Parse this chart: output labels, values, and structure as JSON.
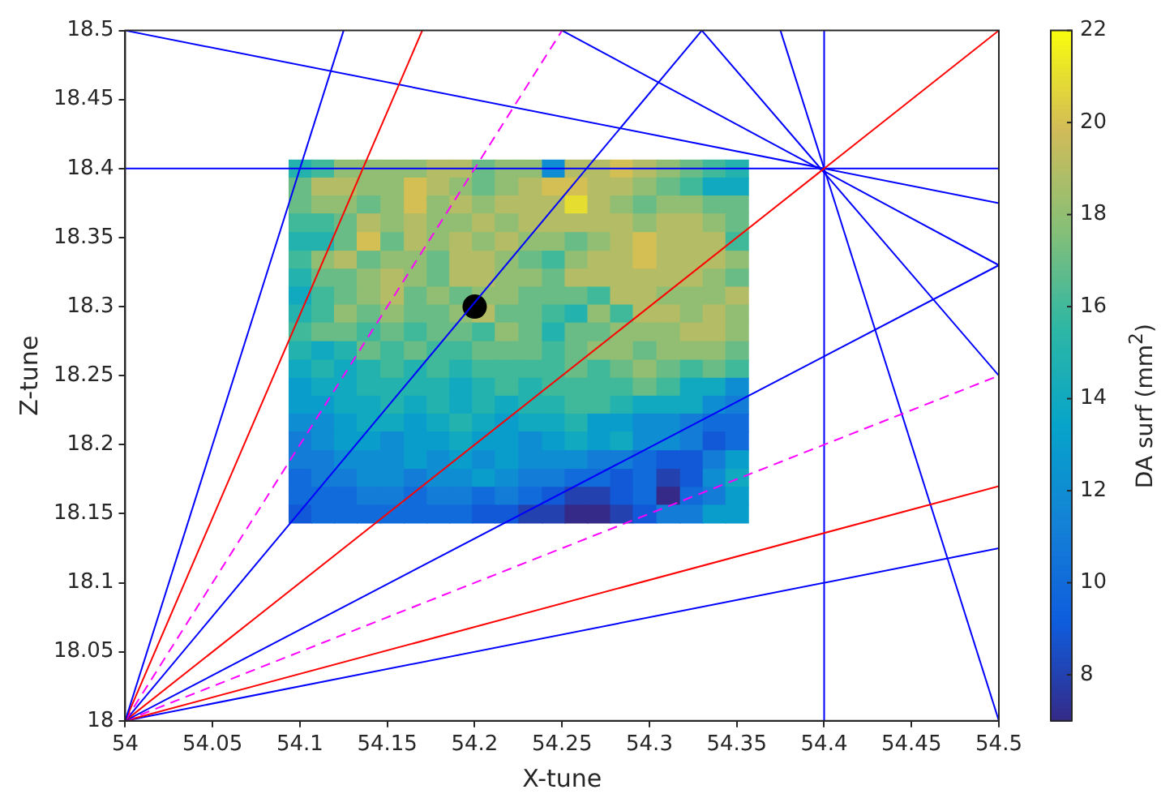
{
  "chart_data": {
    "type": "heatmap",
    "xlabel": "X-tune",
    "ylabel": "Z-tune",
    "clabel": "DA surf (mm$^{2}$)",
    "x": [
      54.1,
      54.113,
      54.126,
      54.139,
      54.153,
      54.166,
      54.179,
      54.192,
      54.205,
      54.218,
      54.232,
      54.245,
      54.258,
      54.271,
      54.284,
      54.297,
      54.311,
      54.324,
      54.337,
      54.35
    ],
    "y": [
      18.4,
      18.387,
      18.374,
      18.361,
      18.347,
      18.334,
      18.321,
      18.308,
      18.295,
      18.282,
      18.268,
      18.255,
      18.242,
      18.229,
      18.216,
      18.203,
      18.189,
      18.176,
      18.163,
      18.15
    ],
    "cells": [
      [
        15,
        16,
        18,
        18,
        18,
        18,
        19,
        19,
        17,
        18,
        18,
        12,
        19,
        19,
        20,
        19,
        18,
        17,
        16,
        15
      ],
      [
        17,
        19,
        19,
        18,
        18,
        20,
        19,
        18,
        17,
        18,
        19,
        20,
        20,
        19,
        19,
        18,
        17,
        16,
        14,
        14
      ],
      [
        17,
        18,
        18,
        17,
        18,
        20,
        18,
        19,
        18,
        19,
        19,
        19,
        21,
        19,
        18,
        17,
        18,
        18,
        17,
        17
      ],
      [
        16,
        16,
        17,
        19,
        18,
        19,
        18,
        18,
        19,
        18,
        19,
        19,
        19,
        19,
        19,
        18,
        19,
        19,
        18,
        17
      ],
      [
        15,
        15,
        17,
        20,
        17,
        19,
        18,
        19,
        18,
        19,
        18,
        18,
        17,
        18,
        19,
        20,
        19,
        19,
        19,
        16
      ],
      [
        16,
        18,
        19,
        17,
        18,
        18,
        17,
        19,
        19,
        18,
        17,
        16,
        18,
        19,
        19,
        20,
        19,
        19,
        19,
        18
      ],
      [
        15,
        17,
        17,
        18,
        19,
        18,
        17,
        19,
        19,
        18,
        18,
        17,
        19,
        19,
        19,
        19,
        19,
        19,
        18,
        17
      ],
      [
        14,
        16,
        17,
        18,
        19,
        17,
        18,
        17,
        18,
        18,
        17,
        17,
        17,
        16,
        19,
        19,
        18,
        18,
        18,
        19
      ],
      [
        15,
        16,
        18,
        17,
        18,
        17,
        17,
        18,
        19,
        17,
        17,
        16,
        15,
        18,
        16,
        19,
        19,
        18,
        19,
        18
      ],
      [
        16,
        17,
        17,
        16,
        17,
        16,
        17,
        17,
        16,
        18,
        17,
        15,
        17,
        17,
        18,
        18,
        18,
        19,
        19,
        18
      ],
      [
        15,
        14,
        15,
        17,
        16,
        17,
        16,
        16,
        17,
        17,
        17,
        16,
        17,
        18,
        18,
        17,
        18,
        18,
        18,
        17
      ],
      [
        14,
        15,
        14,
        15,
        16,
        15,
        16,
        15,
        16,
        16,
        16,
        16,
        17,
        16,
        17,
        18,
        17,
        16,
        17,
        16
      ],
      [
        13,
        14,
        14,
        15,
        15,
        15,
        15,
        14,
        15,
        16,
        15,
        16,
        16,
        16,
        16,
        17,
        16,
        14,
        14,
        12
      ],
      [
        13,
        13,
        14,
        14,
        15,
        14,
        15,
        14,
        15,
        14,
        15,
        15,
        16,
        16,
        15,
        14,
        14,
        14,
        12,
        11
      ],
      [
        12,
        12,
        13,
        14,
        14,
        13,
        14,
        15,
        14,
        13,
        14,
        14,
        15,
        13,
        13,
        12,
        12,
        11,
        10,
        10
      ],
      [
        11,
        12,
        13,
        13,
        12,
        13,
        13,
        14,
        13,
        13,
        12,
        13,
        14,
        13,
        14,
        12,
        12,
        11,
        9,
        10
      ],
      [
        11,
        11,
        12,
        12,
        12,
        13,
        12,
        13,
        12,
        13,
        12,
        12,
        12,
        11,
        11,
        10,
        9,
        9,
        11,
        13
      ],
      [
        10,
        11,
        11,
        12,
        12,
        11,
        12,
        12,
        13,
        12,
        11,
        11,
        10,
        10,
        9,
        10,
        8,
        9,
        12,
        14
      ],
      [
        10,
        10,
        10,
        11,
        11,
        10,
        11,
        11,
        10,
        11,
        10,
        9,
        8,
        8,
        9,
        10,
        7,
        10,
        11,
        13
      ],
      [
        9,
        10,
        10,
        10,
        10,
        10,
        10,
        10,
        9,
        9,
        8,
        8,
        7,
        7,
        8,
        9,
        11,
        11,
        13,
        13
      ]
    ],
    "clim": [
      7,
      22
    ],
    "cticks": [
      8,
      10,
      12,
      14,
      16,
      18,
      20,
      22
    ],
    "xlim": [
      54,
      54.5
    ],
    "xticks": [
      54,
      54.05,
      54.1,
      54.15,
      54.2,
      54.25,
      54.3,
      54.35,
      54.4,
      54.45,
      54.5
    ],
    "ylim": [
      18,
      18.5
    ],
    "yticks": [
      18,
      18.05,
      18.1,
      18.15,
      18.2,
      18.25,
      18.3,
      18.35,
      18.4,
      18.45,
      18.5
    ],
    "grid": false,
    "series": [
      {
        "type": "line",
        "color": "#0000ff",
        "line_style": "solid",
        "x": [
          54,
          54.125
        ],
        "values": [
          18,
          18.5
        ]
      },
      {
        "type": "line",
        "color": "#ff0000",
        "line_style": "solid",
        "x": [
          54,
          54.17
        ],
        "values": [
          18,
          18.5
        ]
      },
      {
        "type": "line",
        "color": "#ff00ff",
        "line_style": "dashed",
        "x": [
          54,
          54.25
        ],
        "values": [
          18,
          18.5
        ]
      },
      {
        "type": "line",
        "color": "#0000ff",
        "line_style": "solid",
        "x": [
          54,
          54.33
        ],
        "values": [
          18,
          18.5
        ]
      },
      {
        "type": "line",
        "color": "#ff0000",
        "line_style": "solid",
        "x": [
          54,
          54.5
        ],
        "values": [
          18,
          18.5
        ]
      },
      {
        "type": "line",
        "color": "#0000ff",
        "line_style": "solid",
        "x": [
          54,
          54.5
        ],
        "values": [
          18,
          18.33
        ]
      },
      {
        "type": "line",
        "color": "#ff00ff",
        "line_style": "dashed",
        "x": [
          54,
          54.5
        ],
        "values": [
          18,
          18.25
        ]
      },
      {
        "type": "line",
        "color": "#ff0000",
        "line_style": "solid",
        "x": [
          54,
          54.5
        ],
        "values": [
          18,
          18.17
        ]
      },
      {
        "type": "line",
        "color": "#0000ff",
        "line_style": "solid",
        "x": [
          54,
          54.5
        ],
        "values": [
          18,
          18.125
        ]
      },
      {
        "type": "line",
        "color": "#0000ff",
        "line_style": "solid",
        "x": [
          54,
          54.5
        ],
        "values": [
          18.5,
          18.375
        ]
      },
      {
        "type": "line",
        "color": "#0000ff",
        "line_style": "solid",
        "x": [
          54,
          54.5
        ],
        "values": [
          18.4,
          18.4
        ]
      },
      {
        "type": "line",
        "color": "#0000ff",
        "line_style": "solid",
        "x": [
          54.4,
          54.4
        ],
        "values": [
          18,
          18.5
        ]
      },
      {
        "type": "line",
        "color": "#0000ff",
        "line_style": "solid",
        "x": [
          54.25,
          54.5
        ],
        "values": [
          18.5,
          18.33
        ]
      },
      {
        "type": "line",
        "color": "#0000ff",
        "line_style": "solid",
        "x": [
          54.33,
          54.5
        ],
        "values": [
          18.5,
          18.25
        ]
      },
      {
        "type": "line",
        "color": "#0000ff",
        "line_style": "solid",
        "x": [
          54.375,
          54.5
        ],
        "values": [
          18.5,
          18
        ]
      },
      {
        "type": "scatter",
        "color": "#000000",
        "marker": "circle",
        "x": [
          54.2
        ],
        "values": [
          18.3
        ]
      }
    ]
  }
}
